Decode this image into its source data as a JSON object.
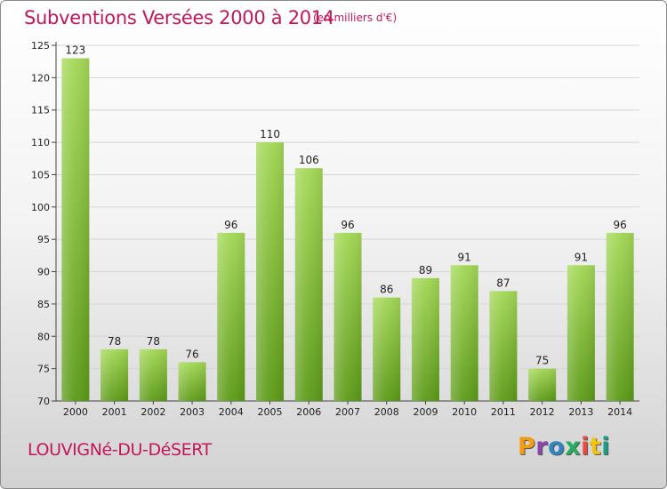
{
  "header": {
    "title": "Subventions Versées 2000 à 2014",
    "unit_note": "(en milliers d'€)"
  },
  "footer": {
    "commune": "LOUVIGNé-DU-DéSERT",
    "logo_text": "Proxiti"
  },
  "colors": {
    "title": "#c2185b",
    "bar_light": "#9fd44e",
    "bar_dark": "#5d9a1a",
    "logo": [
      "#f39c12",
      "#8e44ad",
      "#2e86c1",
      "#27ae60",
      "#e74c3c",
      "#f1c40f",
      "#16a085"
    ]
  },
  "chart_data": {
    "type": "bar",
    "title": "Subventions Versées 2000 à 2014",
    "subtitle": "(en milliers d'€)",
    "xlabel": "",
    "ylabel": "",
    "categories": [
      "2000",
      "2001",
      "2002",
      "2003",
      "2004",
      "2005",
      "2006",
      "2007",
      "2008",
      "2009",
      "2010",
      "2011",
      "2012",
      "2013",
      "2014"
    ],
    "values": [
      123,
      78,
      78,
      76,
      96,
      110,
      106,
      96,
      86,
      89,
      91,
      87,
      75,
      91,
      96
    ],
    "ylim": [
      70,
      125
    ],
    "yticks": [
      70,
      75,
      80,
      85,
      90,
      95,
      100,
      105,
      110,
      115,
      120,
      125
    ],
    "grid": true
  }
}
